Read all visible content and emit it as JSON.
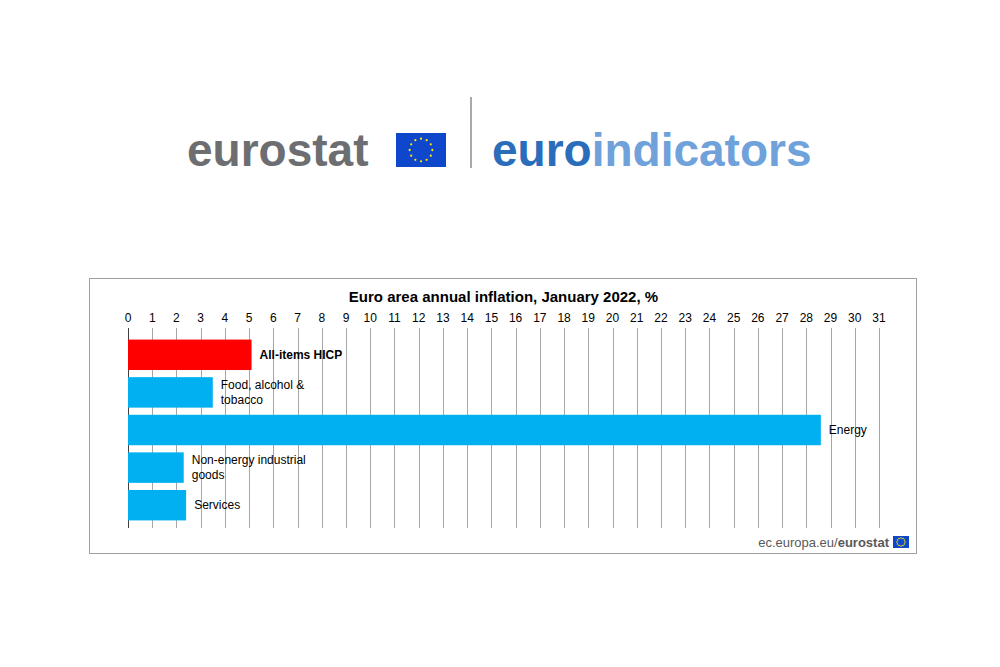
{
  "header": {
    "brand": "eurostat",
    "product": [
      "euro",
      "indicators"
    ]
  },
  "chart_data": {
    "type": "bar",
    "orientation": "horizontal",
    "title": "Euro area annual inflation, January 2022, %",
    "categories": [
      "All-items HICP",
      "Food, alcohol & tobacco",
      "Energy",
      "Non-energy industrial goods",
      "Services"
    ],
    "values": [
      5.1,
      3.5,
      28.6,
      2.3,
      2.4
    ],
    "colors": [
      "#ff0000",
      "#00b0f0",
      "#00b0f0",
      "#00b0f0",
      "#00b0f0"
    ],
    "xlim": [
      0,
      31
    ],
    "xticks": [
      0,
      1,
      2,
      3,
      4,
      5,
      6,
      7,
      8,
      9,
      10,
      11,
      12,
      13,
      14,
      15,
      16,
      17,
      18,
      19,
      20,
      21,
      22,
      23,
      24,
      25,
      26,
      27,
      28,
      29,
      30,
      31
    ],
    "grid": true
  },
  "footer": {
    "source_prefix": "ec.europa.eu/",
    "source_brand": "eurostat"
  }
}
